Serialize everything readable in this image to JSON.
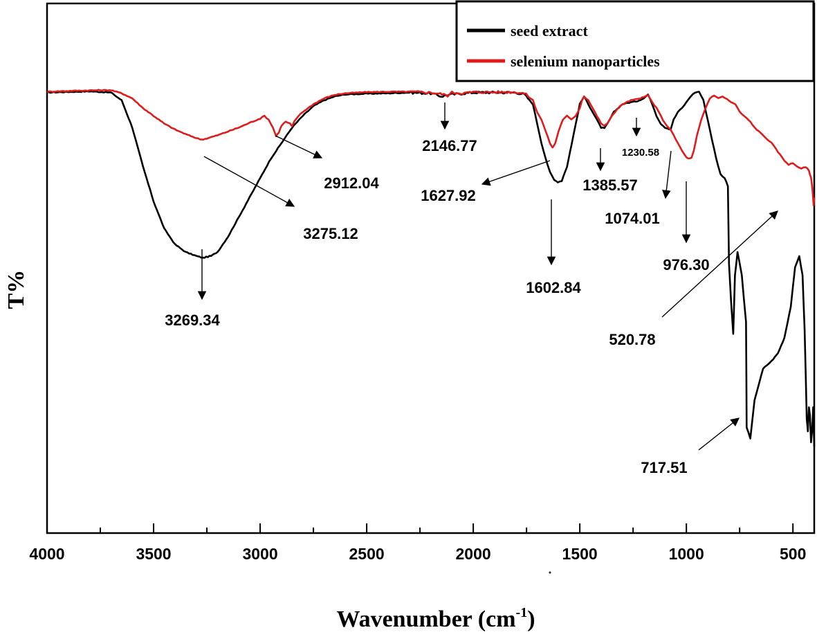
{
  "chart_data": {
    "type": "line",
    "title": "",
    "xlabel": "Wavenumber (cm-1)",
    "xlabel_main": "Wavenumber (cm",
    "xlabel_sup": "-1",
    "xlabel_close": ")",
    "ylabel": "T%",
    "xlim": [
      4000,
      400
    ],
    "ylim": [
      0,
      100
    ],
    "x_reversed": true,
    "xticks": [
      4000,
      3500,
      3000,
      2500,
      2000,
      1500,
      1000,
      500
    ],
    "xtick_labels": [
      "4000",
      "3500",
      "3000",
      "2500",
      "2000",
      "1500",
      "1000",
      "500"
    ],
    "legend_position": "top-right",
    "series": [
      {
        "name": "seed extract",
        "color": "#000000",
        "points": [
          [
            4000,
            99
          ],
          [
            3800,
            99.3
          ],
          [
            3700,
            99
          ],
          [
            3650,
            97
          ],
          [
            3600,
            90
          ],
          [
            3550,
            80
          ],
          [
            3500,
            71
          ],
          [
            3450,
            64
          ],
          [
            3400,
            60
          ],
          [
            3350,
            58
          ],
          [
            3300,
            57
          ],
          [
            3269,
            56.5
          ],
          [
            3230,
            57
          ],
          [
            3200,
            58
          ],
          [
            3150,
            62
          ],
          [
            3100,
            67
          ],
          [
            3050,
            72
          ],
          [
            3000,
            77
          ],
          [
            2950,
            82
          ],
          [
            2900,
            86
          ],
          [
            2850,
            90
          ],
          [
            2800,
            93
          ],
          [
            2750,
            95.5
          ],
          [
            2700,
            97
          ],
          [
            2650,
            98
          ],
          [
            2600,
            98.5
          ],
          [
            2500,
            98.7
          ],
          [
            2400,
            98.8
          ],
          [
            2300,
            99
          ],
          [
            2200,
            98.8
          ],
          [
            2150,
            98
          ],
          [
            2120,
            98.4
          ],
          [
            2080,
            98.6
          ],
          [
            2000,
            99
          ],
          [
            1900,
            99
          ],
          [
            1800,
            99
          ],
          [
            1760,
            98.5
          ],
          [
            1720,
            96
          ],
          [
            1700,
            91
          ],
          [
            1680,
            86
          ],
          [
            1660,
            82
          ],
          [
            1640,
            78.5
          ],
          [
            1620,
            76.5
          ],
          [
            1603,
            76
          ],
          [
            1585,
            76.3
          ],
          [
            1560,
            80
          ],
          [
            1530,
            88
          ],
          [
            1500,
            96
          ],
          [
            1480,
            98
          ],
          [
            1450,
            95
          ],
          [
            1420,
            92
          ],
          [
            1400,
            90
          ],
          [
            1385,
            89.8
          ],
          [
            1370,
            91
          ],
          [
            1340,
            94
          ],
          [
            1300,
            96
          ],
          [
            1260,
            96.5
          ],
          [
            1230,
            96.8
          ],
          [
            1200,
            97.5
          ],
          [
            1180,
            98.5
          ],
          [
            1160,
            96
          ],
          [
            1140,
            93
          ],
          [
            1120,
            91
          ],
          [
            1100,
            90
          ],
          [
            1074,
            89.5
          ],
          [
            1060,
            92
          ],
          [
            1040,
            94
          ],
          [
            1020,
            95
          ],
          [
            1000,
            96.5
          ],
          [
            980,
            98
          ],
          [
            960,
            99
          ],
          [
            940,
            99.2
          ],
          [
            920,
            97
          ],
          [
            900,
            92
          ],
          [
            880,
            87
          ],
          [
            860,
            82
          ],
          [
            840,
            78
          ],
          [
            820,
            77
          ],
          [
            805,
            75
          ],
          [
            800,
            55
          ],
          [
            790,
            45
          ],
          [
            780,
            37
          ],
          [
            772,
            52
          ],
          [
            760,
            58
          ],
          [
            740,
            52
          ],
          [
            720,
            40
          ],
          [
            717,
            13
          ],
          [
            700,
            10
          ],
          [
            680,
            20
          ],
          [
            660,
            24
          ],
          [
            640,
            28
          ],
          [
            620,
            29
          ],
          [
            600,
            30
          ],
          [
            570,
            32
          ],
          [
            540,
            36
          ],
          [
            510,
            44
          ],
          [
            490,
            54
          ],
          [
            470,
            57
          ],
          [
            455,
            52
          ],
          [
            445,
            38
          ],
          [
            435,
            15
          ],
          [
            430,
            12
          ],
          [
            425,
            18
          ],
          [
            420,
            16
          ],
          [
            415,
            9
          ],
          [
            410,
            12
          ],
          [
            405,
            18
          ],
          [
            400,
            8
          ]
        ]
      },
      {
        "name": "selenium nanoparticles",
        "color": "#e01b1b",
        "points": [
          [
            4000,
            99.2
          ],
          [
            3900,
            99.4
          ],
          [
            3750,
            99.6
          ],
          [
            3700,
            99.6
          ],
          [
            3650,
            98.8
          ],
          [
            3600,
            97.5
          ],
          [
            3550,
            95
          ],
          [
            3500,
            93
          ],
          [
            3450,
            91
          ],
          [
            3400,
            89.5
          ],
          [
            3350,
            88.3
          ],
          [
            3300,
            87.3
          ],
          [
            3275,
            86.9
          ],
          [
            3250,
            87.2
          ],
          [
            3200,
            88
          ],
          [
            3150,
            89
          ],
          [
            3100,
            90
          ],
          [
            3050,
            91.2
          ],
          [
            3000,
            92.3
          ],
          [
            2980,
            93
          ],
          [
            2960,
            92
          ],
          [
            2940,
            90
          ],
          [
            2925,
            87.8
          ],
          [
            2912,
            88.8
          ],
          [
            2900,
            90.5
          ],
          [
            2880,
            91.5
          ],
          [
            2860,
            91
          ],
          [
            2850,
            90.3
          ],
          [
            2840,
            91.5
          ],
          [
            2820,
            93
          ],
          [
            2800,
            94
          ],
          [
            2750,
            96
          ],
          [
            2700,
            97.5
          ],
          [
            2650,
            98.4
          ],
          [
            2600,
            98.8
          ],
          [
            2500,
            99.1
          ],
          [
            2400,
            99.2
          ],
          [
            2300,
            99.2
          ],
          [
            2200,
            99
          ],
          [
            2147,
            98.6
          ],
          [
            2120,
            98.2
          ],
          [
            2100,
            99
          ],
          [
            2050,
            98.8
          ],
          [
            2000,
            99.1
          ],
          [
            1900,
            99.1
          ],
          [
            1800,
            99.1
          ],
          [
            1760,
            98.8
          ],
          [
            1720,
            97
          ],
          [
            1700,
            94
          ],
          [
            1680,
            92
          ],
          [
            1660,
            89
          ],
          [
            1640,
            86
          ],
          [
            1628,
            84.8
          ],
          [
            1615,
            86
          ],
          [
            1600,
            89
          ],
          [
            1580,
            92
          ],
          [
            1560,
            93
          ],
          [
            1540,
            92
          ],
          [
            1520,
            93
          ],
          [
            1500,
            95
          ],
          [
            1490,
            97
          ],
          [
            1480,
            98
          ],
          [
            1460,
            97
          ],
          [
            1440,
            95
          ],
          [
            1420,
            93
          ],
          [
            1400,
            91
          ],
          [
            1385,
            90.5
          ],
          [
            1370,
            91
          ],
          [
            1350,
            93
          ],
          [
            1320,
            95
          ],
          [
            1300,
            96
          ],
          [
            1260,
            97
          ],
          [
            1230,
            97.3
          ],
          [
            1200,
            97.8
          ],
          [
            1180,
            98.3
          ],
          [
            1160,
            96.5
          ],
          [
            1140,
            95
          ],
          [
            1120,
            93
          ],
          [
            1100,
            91
          ],
          [
            1074,
            89.5
          ],
          [
            1060,
            88
          ],
          [
            1040,
            86
          ],
          [
            1020,
            84
          ],
          [
            1000,
            82.3
          ],
          [
            985,
            82
          ],
          [
            976,
            82.2
          ],
          [
            965,
            84
          ],
          [
            950,
            88
          ],
          [
            930,
            92
          ],
          [
            910,
            95
          ],
          [
            890,
            97.5
          ],
          [
            870,
            98.3
          ],
          [
            850,
            97.5
          ],
          [
            830,
            98
          ],
          [
            810,
            97.3
          ],
          [
            790,
            96.5
          ],
          [
            770,
            96
          ],
          [
            750,
            94
          ],
          [
            730,
            93
          ],
          [
            700,
            91.5
          ],
          [
            680,
            90
          ],
          [
            660,
            89
          ],
          [
            640,
            88
          ],
          [
            620,
            87
          ],
          [
            600,
            86
          ],
          [
            580,
            84.5
          ],
          [
            560,
            83
          ],
          [
            540,
            81.5
          ],
          [
            520,
            80.5
          ],
          [
            500,
            80.8
          ],
          [
            480,
            80
          ],
          [
            460,
            79.5
          ],
          [
            440,
            79.8
          ],
          [
            425,
            79
          ],
          [
            415,
            77
          ],
          [
            408,
            74
          ],
          [
            403,
            70
          ],
          [
            400,
            72
          ]
        ]
      }
    ],
    "annotations": [
      {
        "label": "3269.34",
        "series": "seed extract",
        "x": 3269
      },
      {
        "label": "3275.12",
        "series": "selenium nanoparticles",
        "x": 3275
      },
      {
        "label": "2912.04",
        "series": "selenium nanoparticles",
        "x": 2912
      },
      {
        "label": "2146.77",
        "series": "both",
        "x": 2147
      },
      {
        "label": "1627.92",
        "series": "selenium nanoparticles",
        "x": 1628
      },
      {
        "label": "1602.84",
        "series": "seed extract",
        "x": 1603
      },
      {
        "label": "1385.57",
        "series": "both",
        "x": 1385
      },
      {
        "label": "1230.58",
        "series": "seed extract",
        "x": 1230
      },
      {
        "label": "1074.01",
        "series": "seed extract",
        "x": 1074
      },
      {
        "label": "976.30",
        "series": "selenium nanoparticles",
        "x": 976
      },
      {
        "label": "520.78",
        "series": "selenium nanoparticles",
        "x": 521
      },
      {
        "label": "717.51",
        "series": "seed extract",
        "x": 717
      }
    ]
  }
}
